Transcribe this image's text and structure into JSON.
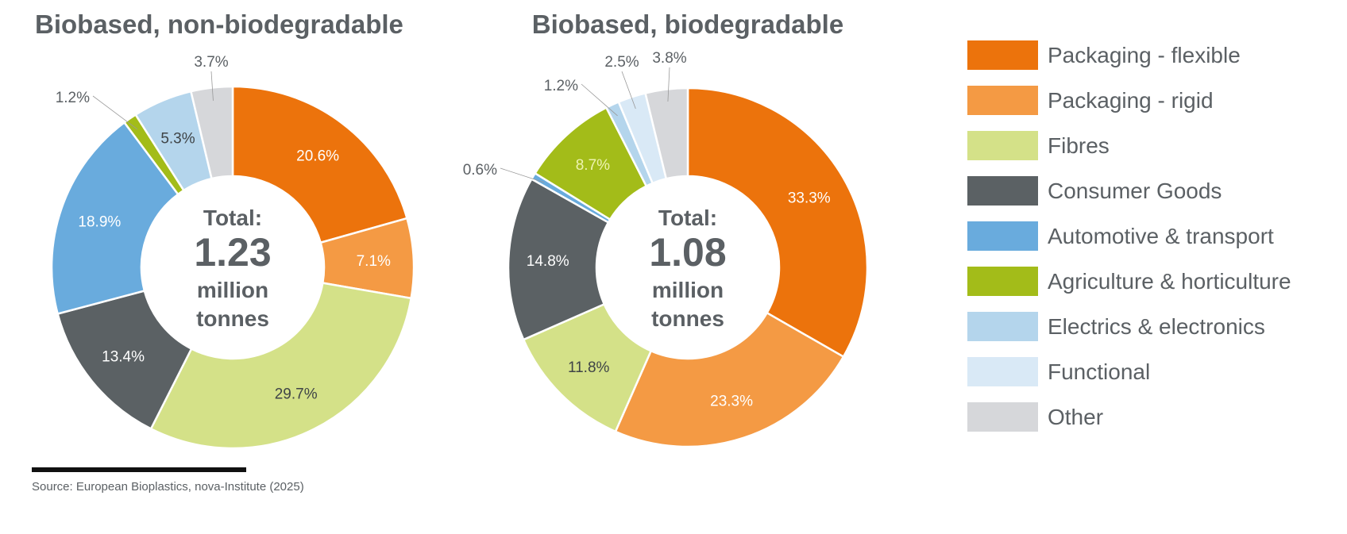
{
  "chart_data": [
    {
      "type": "pie",
      "title": "Biobased, non-biodegradable",
      "center_text": {
        "line1": "Total:",
        "line2": "1.23",
        "line3": "million",
        "line4": "tonnes"
      },
      "categories": [
        "Packaging - flexible",
        "Packaging - rigid",
        "Fibres",
        "Consumer Goods",
        "Automotive & transport",
        "Agriculture & horticulture",
        "Electrics & electronics",
        "Other"
      ],
      "values": [
        20.6,
        7.1,
        29.7,
        13.4,
        18.9,
        1.2,
        5.3,
        3.7
      ],
      "labels": [
        "20.6%",
        "7.1%",
        "29.7%",
        "13.4%",
        "18.9%",
        "1.2%",
        "5.3%",
        "3.7%"
      ],
      "unit": "%"
    },
    {
      "type": "pie",
      "title": "Biobased, biodegradable",
      "center_text": {
        "line1": "Total:",
        "line2": "1.08",
        "line3": "million",
        "line4": "tonnes"
      },
      "categories": [
        "Packaging - flexible",
        "Packaging - rigid",
        "Fibres",
        "Consumer Goods",
        "Automotive & transport",
        "Agriculture & horticulture",
        "Electrics & electronics",
        "Functional",
        "Other"
      ],
      "values": [
        33.3,
        23.3,
        11.8,
        14.8,
        0.6,
        8.7,
        1.2,
        2.5,
        3.8
      ],
      "labels": [
        "33.3%",
        "23.3%",
        "11.8%",
        "14.8%",
        "0.6%",
        "8.7%",
        "1.2%",
        "2.5%",
        "3.8%"
      ],
      "unit": "%"
    }
  ],
  "legend": [
    {
      "label": "Packaging - flexible",
      "color": "#ec730c"
    },
    {
      "label": "Packaging - rigid",
      "color": "#f49a44"
    },
    {
      "label": "Fibres",
      "color": "#d4e188"
    },
    {
      "label": "Consumer Goods",
      "color": "#5b6164"
    },
    {
      "label": "Automotive & transport",
      "color": "#69abdd"
    },
    {
      "label": "Agriculture & horticulture",
      "color": "#a3bc19"
    },
    {
      "label": "Electrics & electronics",
      "color": "#b4d5ec"
    },
    {
      "label": "Functional",
      "color": "#d9e9f6"
    },
    {
      "label": "Other",
      "color": "#d6d7da"
    }
  ],
  "source": "Source: European Bioplastics, nova-Institute (2025)"
}
